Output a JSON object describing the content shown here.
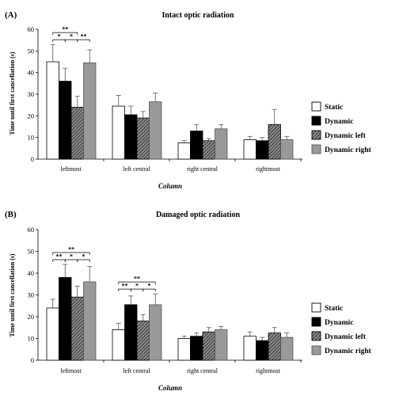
{
  "chart_data": [
    {
      "type": "bar",
      "panel_label": "(A)",
      "title": "Intact optic radiation",
      "ylabel": "Time until first cancellation (s)",
      "xlabel": "Column",
      "ylim": [
        0,
        60
      ],
      "yticks": [
        0,
        10,
        20,
        30,
        40,
        50,
        60
      ],
      "categories": [
        "leftmost",
        "left central",
        "right central",
        "rightmost"
      ],
      "series": [
        {
          "name": "Static",
          "values": [
            45,
            24.5,
            7.5,
            9
          ],
          "errors": [
            8,
            5,
            1,
            1.5
          ]
        },
        {
          "name": "Dynamic",
          "values": [
            36,
            20.5,
            13,
            8.5
          ],
          "errors": [
            6,
            4,
            3,
            1.5
          ]
        },
        {
          "name": "Dynamic left",
          "values": [
            24,
            19,
            8.5,
            16
          ],
          "errors": [
            5,
            3,
            1,
            7
          ]
        },
        {
          "name": "Dynamic right",
          "values": [
            44.5,
            26.5,
            14,
            9
          ],
          "errors": [
            6,
            4,
            2,
            1.5
          ]
        }
      ],
      "significance": [
        {
          "category": 0,
          "from": 0,
          "to": 1,
          "label": "*",
          "level": 1
        },
        {
          "category": 0,
          "from": 1,
          "to": 2,
          "label": "*",
          "level": 1
        },
        {
          "category": 0,
          "from": 2,
          "to": 3,
          "label": "**",
          "level": 1
        },
        {
          "category": 0,
          "from": 0,
          "to": 2,
          "label": "**",
          "level": 2
        }
      ],
      "legend_position": "right"
    },
    {
      "type": "bar",
      "panel_label": "(B)",
      "title": "Damaged optic radiation",
      "ylabel": "Time until first cancellation (s)",
      "xlabel": "Column",
      "ylim": [
        0,
        60
      ],
      "yticks": [
        0,
        10,
        20,
        30,
        40,
        50,
        60
      ],
      "categories": [
        "leftmost",
        "left central",
        "right central",
        "rightmost"
      ],
      "series": [
        {
          "name": "Static",
          "values": [
            24,
            14,
            10,
            11
          ],
          "errors": [
            4,
            3,
            1,
            2
          ]
        },
        {
          "name": "Dynamic",
          "values": [
            38,
            25.5,
            11,
            9
          ],
          "errors": [
            6,
            4,
            1.5,
            1.5
          ]
        },
        {
          "name": "Dynamic left",
          "values": [
            29,
            18,
            13,
            12.5
          ],
          "errors": [
            5,
            3,
            2,
            2.5
          ]
        },
        {
          "name": "Dynamic right",
          "values": [
            36,
            25.5,
            14,
            10.5
          ],
          "errors": [
            7,
            5,
            1.5,
            2
          ]
        }
      ],
      "significance": [
        {
          "category": 0,
          "from": 0,
          "to": 1,
          "label": "**",
          "level": 1
        },
        {
          "category": 0,
          "from": 1,
          "to": 2,
          "label": "*",
          "level": 1
        },
        {
          "category": 0,
          "from": 2,
          "to": 3,
          "label": "*",
          "level": 1
        },
        {
          "category": 0,
          "from": 0,
          "to": 3,
          "label": "**",
          "level": 2
        },
        {
          "category": 1,
          "from": 0,
          "to": 1,
          "label": "**",
          "level": 1
        },
        {
          "category": 1,
          "from": 1,
          "to": 2,
          "label": "*",
          "level": 1
        },
        {
          "category": 1,
          "from": 2,
          "to": 3,
          "label": "*",
          "level": 1
        },
        {
          "category": 1,
          "from": 0,
          "to": 3,
          "label": "**",
          "level": 2
        }
      ],
      "legend_position": "right"
    }
  ]
}
